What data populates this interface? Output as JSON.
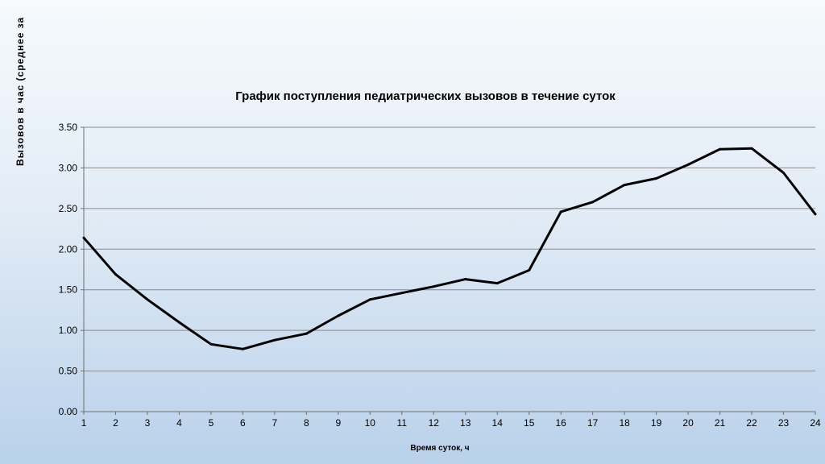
{
  "chart_data": {
    "type": "line",
    "title": "График поступления педиатрических вызовов в течение суток",
    "xlabel": "Время суток, ч",
    "ylabel": "Вызовов в час (среднее за",
    "x": [
      1,
      2,
      3,
      4,
      5,
      6,
      7,
      8,
      9,
      10,
      11,
      12,
      13,
      14,
      15,
      16,
      17,
      18,
      19,
      20,
      21,
      22,
      23,
      24
    ],
    "series": [
      {
        "values": [
          2.14,
          1.69,
          1.38,
          1.1,
          0.83,
          0.77,
          0.88,
          0.96,
          1.18,
          1.38,
          1.46,
          1.54,
          1.63,
          1.58,
          1.74,
          2.46,
          2.58,
          2.79,
          2.87,
          3.04,
          3.23,
          3.24,
          2.94,
          2.43
        ]
      }
    ],
    "ylim": [
      0,
      3.5
    ],
    "yticks": [
      "0.00",
      "0.50",
      "1.00",
      "1.50",
      "2.00",
      "2.50",
      "3.00",
      "3.50"
    ],
    "grid": true,
    "legend": "none",
    "line_color": "#000000",
    "grid_color": "#8a8a8a"
  }
}
